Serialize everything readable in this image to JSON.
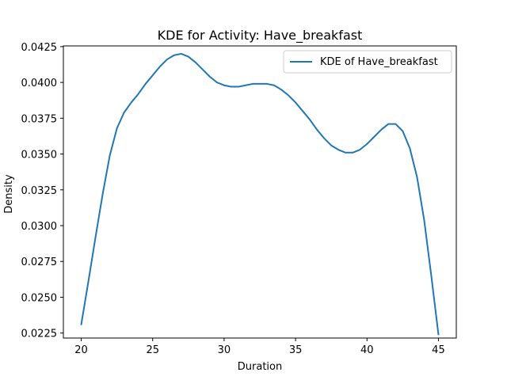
{
  "chart_data": {
    "type": "line",
    "title": "KDE for Activity: Have_breakfast",
    "xlabel": "Duration",
    "ylabel": "Density",
    "xlim": [
      18.75,
      46.25
    ],
    "ylim": [
      0.02215,
      0.04255
    ],
    "x_ticks": [
      20,
      25,
      30,
      35,
      40,
      45
    ],
    "x_tick_labels": [
      "20",
      "25",
      "30",
      "35",
      "40",
      "45"
    ],
    "y_ticks": [
      0.0225,
      0.025,
      0.0275,
      0.03,
      0.0325,
      0.035,
      0.0375,
      0.04,
      0.0425
    ],
    "y_tick_labels": [
      "0.0225",
      "0.0250",
      "0.0275",
      "0.0300",
      "0.0325",
      "0.0350",
      "0.0375",
      "0.0400",
      "0.0425"
    ],
    "grid": false,
    "legend_position": "top-right",
    "series": [
      {
        "name": "KDE of Have_breakfast",
        "color": "#1f77b4",
        "x": [
          20,
          20.5,
          21,
          21.5,
          22,
          22.5,
          23,
          23.5,
          24,
          24.5,
          25,
          25.5,
          26,
          26.5,
          27,
          27.5,
          28,
          28.5,
          29,
          29.5,
          30,
          30.5,
          31,
          31.5,
          32,
          32.5,
          33,
          33.5,
          34,
          34.5,
          35,
          35.5,
          36,
          36.5,
          37,
          37.5,
          38,
          38.5,
          39,
          39.5,
          40,
          40.5,
          41,
          41.5,
          42,
          42.5,
          43,
          43.5,
          44,
          44.5,
          45
        ],
        "y": [
          0.0231,
          0.0261,
          0.0292,
          0.0322,
          0.0349,
          0.0368,
          0.0379,
          0.0386,
          0.0392,
          0.0399,
          0.0405,
          0.0411,
          0.0416,
          0.0419,
          0.042,
          0.0418,
          0.0414,
          0.0409,
          0.0404,
          0.04,
          0.0398,
          0.0397,
          0.0397,
          0.0398,
          0.0399,
          0.0399,
          0.0399,
          0.0398,
          0.0395,
          0.0391,
          0.0386,
          0.038,
          0.0374,
          0.0367,
          0.0361,
          0.0356,
          0.0353,
          0.0351,
          0.0351,
          0.0353,
          0.0357,
          0.0362,
          0.0367,
          0.0371,
          0.0371,
          0.0366,
          0.0354,
          0.0334,
          0.0304,
          0.0265,
          0.0224
        ]
      }
    ]
  }
}
